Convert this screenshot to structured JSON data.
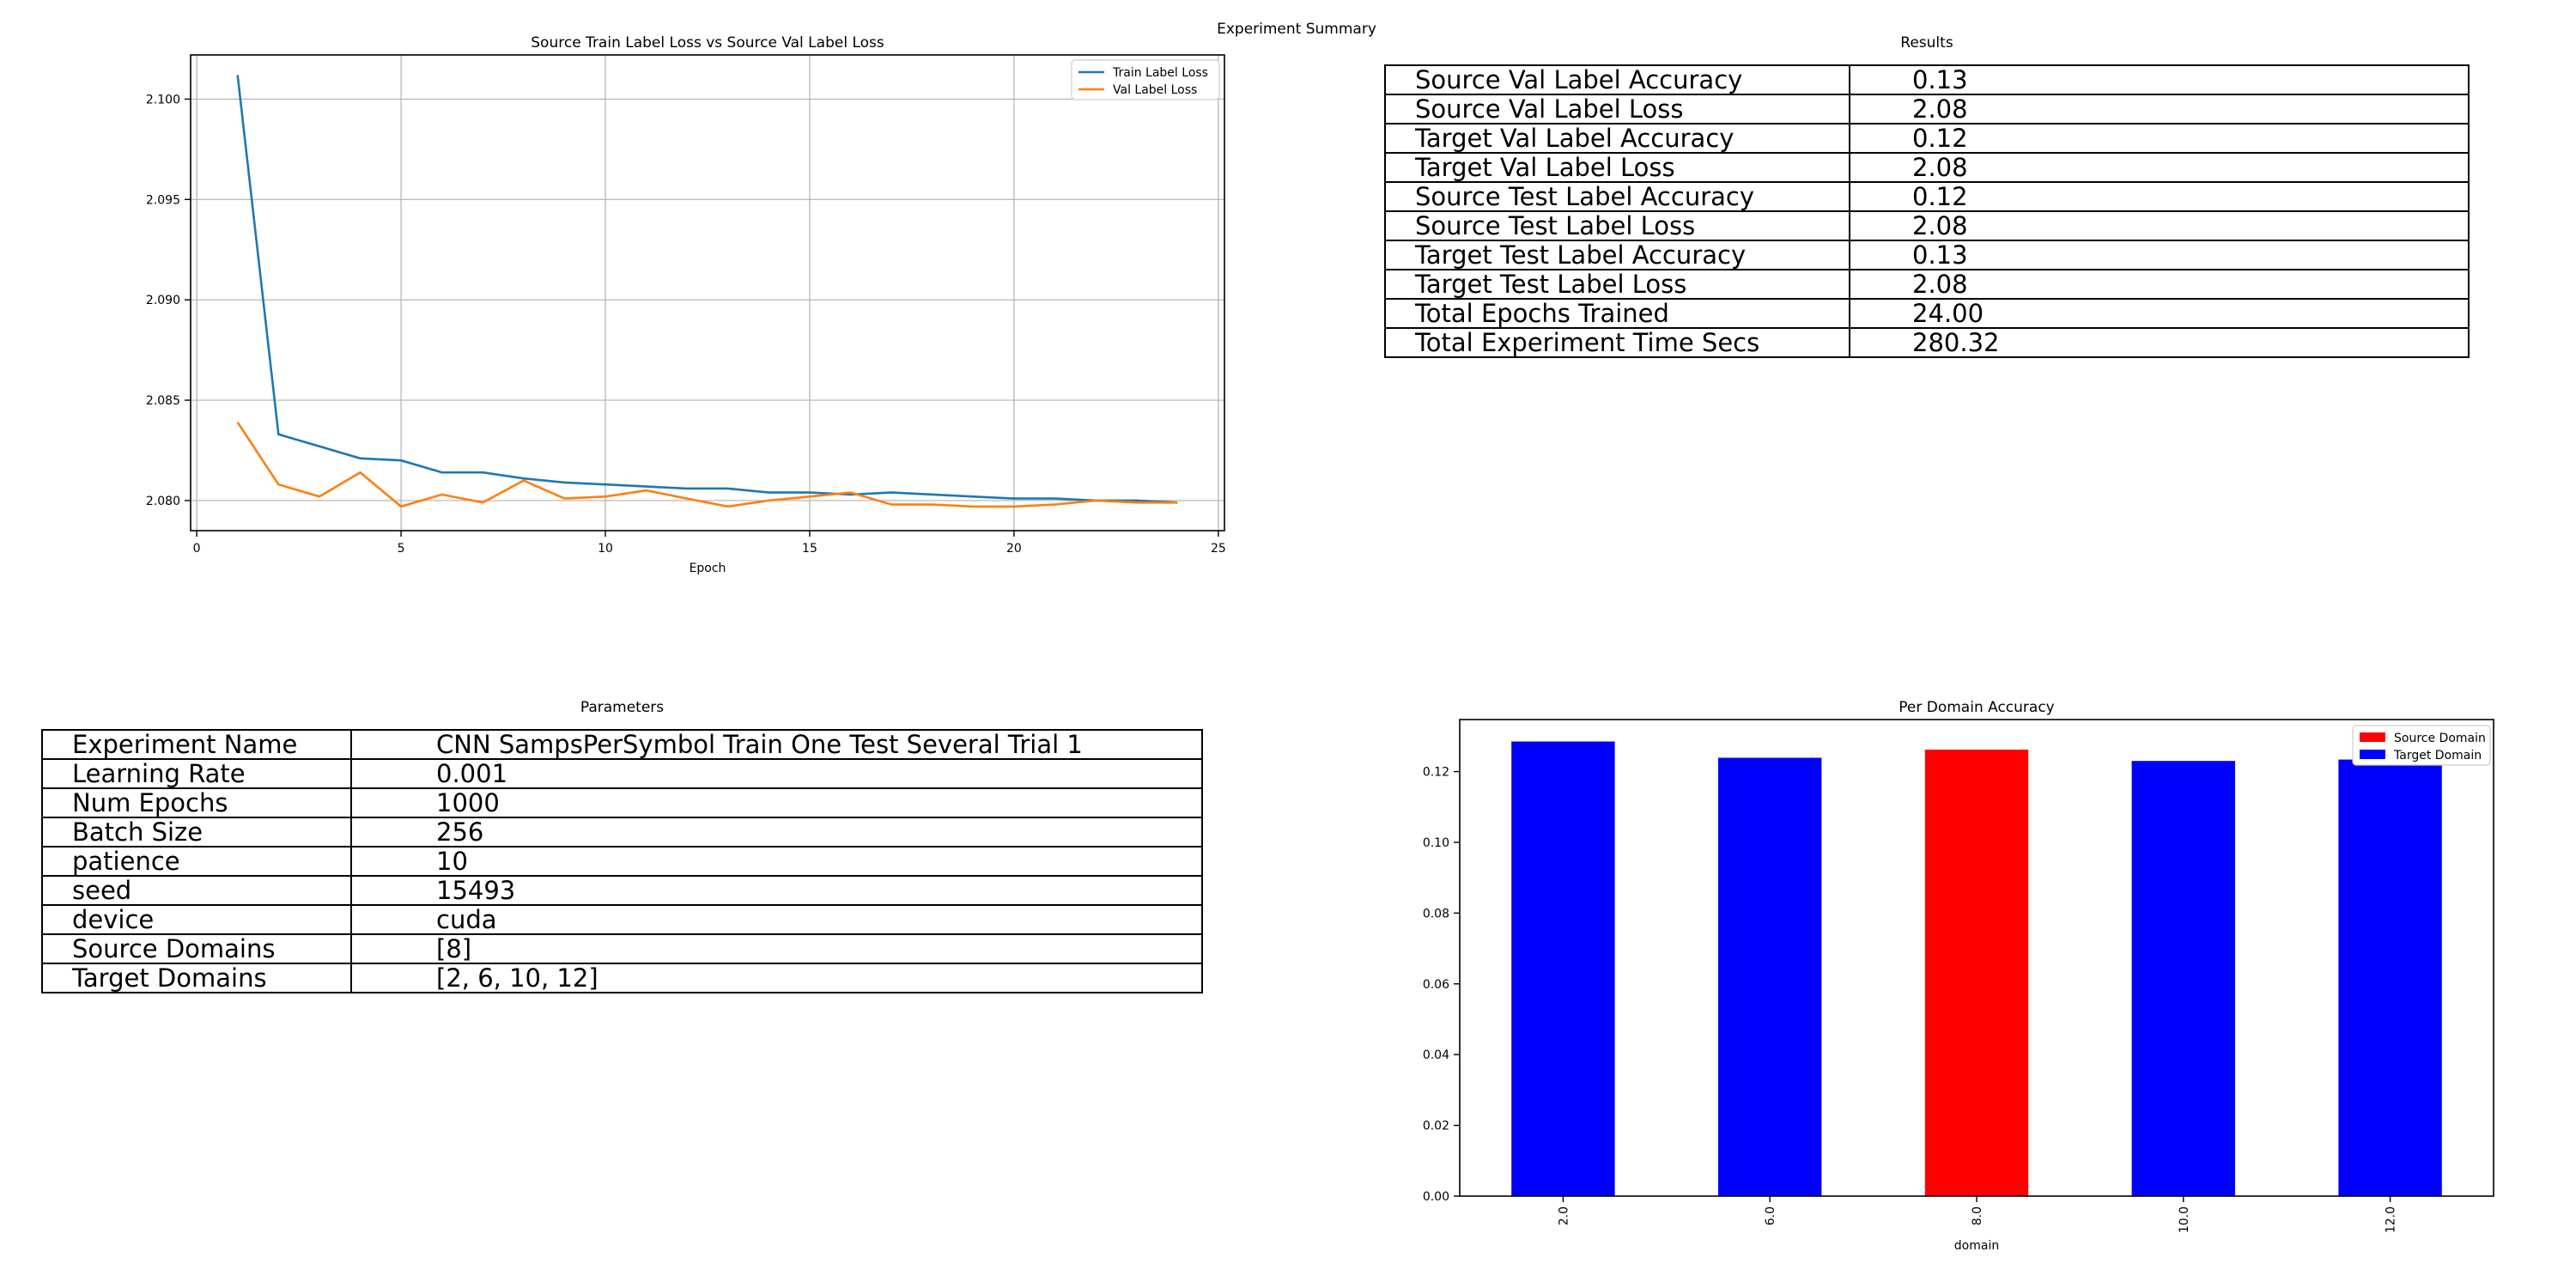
{
  "figure": {
    "title": "Experiment Summary"
  },
  "results": {
    "title": "Results",
    "rows": [
      [
        "Source Val Label Accuracy",
        "0.13"
      ],
      [
        "Source Val Label Loss",
        "2.08"
      ],
      [
        "Target Val Label Accuracy",
        "0.12"
      ],
      [
        "Target Val Label Loss",
        "2.08"
      ],
      [
        "Source Test Label Accuracy",
        "0.12"
      ],
      [
        "Source Test Label Loss",
        "2.08"
      ],
      [
        "Target Test Label Accuracy",
        "0.13"
      ],
      [
        "Target Test Label Loss",
        "2.08"
      ],
      [
        "Total Epochs Trained",
        "24.00"
      ],
      [
        "Total Experiment Time Secs",
        "280.32"
      ]
    ]
  },
  "parameters": {
    "title": "Parameters",
    "rows": [
      [
        "Experiment Name",
        "CNN SampsPerSymbol Train One Test Several Trial 1"
      ],
      [
        "Learning Rate",
        "0.001"
      ],
      [
        "Num Epochs",
        "1000"
      ],
      [
        "Batch Size",
        "256"
      ],
      [
        "patience",
        "10"
      ],
      [
        "seed",
        "15493"
      ],
      [
        "device",
        "cuda"
      ],
      [
        "Source Domains",
        "[8]"
      ],
      [
        "Target Domains",
        "[2, 6, 10, 12]"
      ]
    ]
  },
  "chart_data": [
    {
      "type": "line",
      "title": "Source Train Label Loss vs Source Val Label Loss",
      "xlabel": "Epoch",
      "ylabel": "",
      "xlim": [
        -0.15,
        25.15
      ],
      "ylim": [
        2.0785,
        2.1022
      ],
      "xticks": [
        0,
        5,
        10,
        15,
        20,
        25
      ],
      "yticks": [
        2.08,
        2.085,
        2.09,
        2.095,
        2.1
      ],
      "grid": true,
      "legend": "top-right",
      "x": [
        1,
        2,
        3,
        4,
        5,
        6,
        7,
        8,
        9,
        10,
        11,
        12,
        13,
        14,
        15,
        16,
        17,
        18,
        19,
        20,
        21,
        22,
        23,
        24
      ],
      "series": [
        {
          "name": "Train Label Loss",
          "color": "#1f77b4",
          "values": [
            2.1012,
            2.0833,
            2.0827,
            2.0821,
            2.082,
            2.0814,
            2.0814,
            2.0811,
            2.0809,
            2.0808,
            2.0807,
            2.0806,
            2.0806,
            2.0804,
            2.0804,
            2.0803,
            2.0804,
            2.0803,
            2.0802,
            2.0801,
            2.0801,
            2.08,
            2.08,
            2.0799
          ]
        },
        {
          "name": "Val Label Loss",
          "color": "#ff7f0e",
          "values": [
            2.0839,
            2.0808,
            2.0802,
            2.0814,
            2.0797,
            2.0803,
            2.0799,
            2.081,
            2.0801,
            2.0802,
            2.0805,
            2.0801,
            2.0797,
            2.08,
            2.0802,
            2.0804,
            2.0798,
            2.0798,
            2.0797,
            2.0797,
            2.0798,
            2.08,
            2.0799,
            2.0799
          ]
        }
      ]
    },
    {
      "type": "bar",
      "title": "Per Domain Accuracy",
      "xlabel": "domain",
      "ylabel": "",
      "categories": [
        "2.0",
        "6.0",
        "8.0",
        "10.0",
        "12.0"
      ],
      "values": [
        0.1285,
        0.1239,
        0.1262,
        0.123,
        0.1234
      ],
      "bar_colors": [
        "#0000ff",
        "#0000ff",
        "#ff0000",
        "#0000ff",
        "#0000ff"
      ],
      "ylim": [
        0,
        0.1347
      ],
      "yticks": [
        0.0,
        0.02,
        0.04,
        0.06,
        0.08,
        0.1,
        0.12
      ],
      "grid": false,
      "legend": "top-right",
      "legend_entries": [
        {
          "name": "Source Domain",
          "color": "#ff0000"
        },
        {
          "name": "Target Domain",
          "color": "#0000ff"
        }
      ]
    }
  ]
}
